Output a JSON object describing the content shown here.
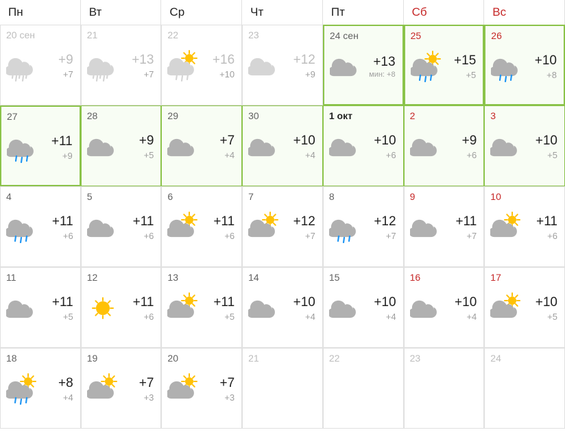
{
  "colors": {
    "text": "#212121",
    "muted": "#9e9e9e",
    "past": "#bdbdbd",
    "weekend": "#c62828",
    "border": "#e0e0e0",
    "highlight_border": "#8bc34a",
    "highlight_bg": "#f8fdf4",
    "cloud_active": "#b0b0b0",
    "cloud_past": "#d5d5d5",
    "sun": "#ffc107",
    "rain": "#2196f3"
  },
  "headers": [
    {
      "label": "Пн",
      "weekend": false
    },
    {
      "label": "Вт",
      "weekend": false
    },
    {
      "label": "Ср",
      "weekend": false
    },
    {
      "label": "Чт",
      "weekend": false
    },
    {
      "label": "Пт",
      "weekend": false
    },
    {
      "label": "Сб",
      "weekend": true
    },
    {
      "label": "Вс",
      "weekend": true
    }
  ],
  "days": [
    {
      "date": "20 сен",
      "hi": "+9",
      "lo": "+7",
      "icon": "rain-heavy",
      "state": "past",
      "weekend": false
    },
    {
      "date": "21",
      "hi": "+13",
      "lo": "+7",
      "icon": "rain-heavy",
      "state": "past",
      "weekend": false
    },
    {
      "date": "22",
      "hi": "+16",
      "lo": "+10",
      "icon": "rain-sun",
      "state": "past",
      "weekend": false
    },
    {
      "date": "23",
      "hi": "+12",
      "lo": "+9",
      "icon": "cloud",
      "state": "past",
      "weekend": false
    },
    {
      "date": "24 сен",
      "hi": "+13",
      "lo": "+8",
      "min_label": "мин:",
      "icon": "cloud",
      "state": "strong-highlight",
      "weekend": false
    },
    {
      "date": "25",
      "hi": "+15",
      "lo": "+5",
      "icon": "rain-sun",
      "state": "strong-highlight",
      "weekend": true
    },
    {
      "date": "26",
      "hi": "+10",
      "lo": "+8",
      "icon": "rain",
      "state": "strong-highlight",
      "weekend": true
    },
    {
      "date": "27",
      "hi": "+11",
      "lo": "+9",
      "icon": "rain",
      "state": "strong-highlight",
      "weekend": false
    },
    {
      "date": "28",
      "hi": "+9",
      "lo": "+5",
      "icon": "cloud",
      "state": "highlighted",
      "weekend": false
    },
    {
      "date": "29",
      "hi": "+7",
      "lo": "+4",
      "icon": "cloud",
      "state": "highlighted",
      "weekend": false
    },
    {
      "date": "30",
      "hi": "+10",
      "lo": "+4",
      "icon": "cloud",
      "state": "highlighted",
      "weekend": false
    },
    {
      "date": "1 окт",
      "hi": "+10",
      "lo": "+6",
      "icon": "cloud",
      "state": "highlighted",
      "weekend": false,
      "bold": true
    },
    {
      "date": "2",
      "hi": "+9",
      "lo": "+6",
      "icon": "cloud",
      "state": "highlighted",
      "weekend": true
    },
    {
      "date": "3",
      "hi": "+10",
      "lo": "+5",
      "icon": "cloud",
      "state": "highlighted",
      "weekend": true
    },
    {
      "date": "4",
      "hi": "+11",
      "lo": "+6",
      "icon": "rain",
      "state": "normal",
      "weekend": false
    },
    {
      "date": "5",
      "hi": "+11",
      "lo": "+6",
      "icon": "cloud",
      "state": "normal",
      "weekend": false
    },
    {
      "date": "6",
      "hi": "+11",
      "lo": "+6",
      "icon": "cloud-sun",
      "state": "normal",
      "weekend": false
    },
    {
      "date": "7",
      "hi": "+12",
      "lo": "+7",
      "icon": "cloud-sun",
      "state": "normal",
      "weekend": false
    },
    {
      "date": "8",
      "hi": "+12",
      "lo": "+7",
      "icon": "rain",
      "state": "normal",
      "weekend": false
    },
    {
      "date": "9",
      "hi": "+11",
      "lo": "+7",
      "icon": "cloud",
      "state": "normal",
      "weekend": true
    },
    {
      "date": "10",
      "hi": "+11",
      "lo": "+6",
      "icon": "cloud-sun",
      "state": "normal",
      "weekend": true
    },
    {
      "date": "11",
      "hi": "+11",
      "lo": "+5",
      "icon": "cloud",
      "state": "normal",
      "weekend": false
    },
    {
      "date": "12",
      "hi": "+11",
      "lo": "+6",
      "icon": "sunny",
      "state": "normal",
      "weekend": false
    },
    {
      "date": "13",
      "hi": "+11",
      "lo": "+5",
      "icon": "cloud-sun",
      "state": "normal",
      "weekend": false
    },
    {
      "date": "14",
      "hi": "+10",
      "lo": "+4",
      "icon": "cloud",
      "state": "normal",
      "weekend": false
    },
    {
      "date": "15",
      "hi": "+10",
      "lo": "+4",
      "icon": "cloud",
      "state": "normal",
      "weekend": false
    },
    {
      "date": "16",
      "hi": "+10",
      "lo": "+4",
      "icon": "cloud",
      "state": "normal",
      "weekend": true
    },
    {
      "date": "17",
      "hi": "+10",
      "lo": "+5",
      "icon": "cloud-sun",
      "state": "normal",
      "weekend": true
    },
    {
      "date": "18",
      "hi": "+8",
      "lo": "+4",
      "icon": "rain-sun",
      "state": "normal",
      "weekend": false
    },
    {
      "date": "19",
      "hi": "+7",
      "lo": "+3",
      "icon": "cloud-sun",
      "state": "normal",
      "weekend": false
    },
    {
      "date": "20",
      "hi": "+7",
      "lo": "+3",
      "icon": "cloud-sun",
      "state": "normal",
      "weekend": false
    },
    {
      "date": "21",
      "state": "empty",
      "weekend": false
    },
    {
      "date": "22",
      "state": "empty",
      "weekend": false
    },
    {
      "date": "23",
      "state": "empty",
      "weekend": true
    },
    {
      "date": "24",
      "state": "empty",
      "weekend": true
    }
  ]
}
